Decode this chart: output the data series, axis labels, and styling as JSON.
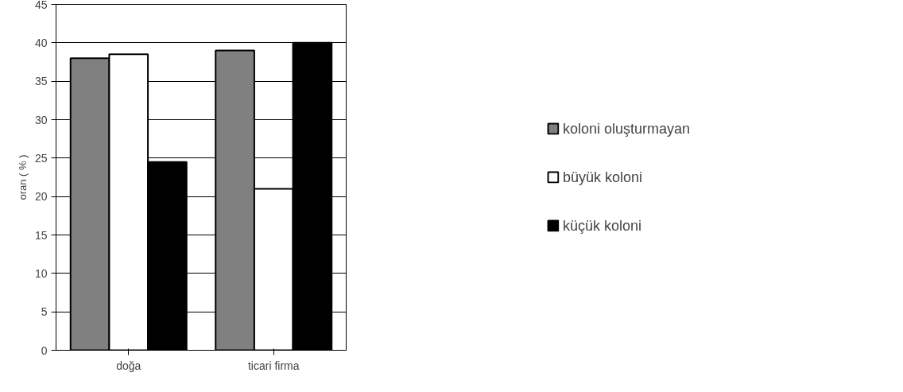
{
  "chart_data": {
    "type": "bar",
    "ylabel": "oran ( % )",
    "categories": [
      "doğa",
      "ticari firma"
    ],
    "series": [
      {
        "name": "koloni oluşturmayan",
        "color": "#808080",
        "values": [
          38,
          39
        ]
      },
      {
        "name": "büyük koloni",
        "color": "#ffffff",
        "values": [
          38.5,
          21
        ]
      },
      {
        "name": "küçük koloni",
        "color": "#000000",
        "values": [
          24.5,
          40
        ]
      }
    ],
    "ylim": [
      0,
      45
    ],
    "yticks": [
      0,
      5,
      10,
      15,
      20,
      25,
      30,
      35,
      40,
      45
    ],
    "grid": "y",
    "legend": "right"
  }
}
